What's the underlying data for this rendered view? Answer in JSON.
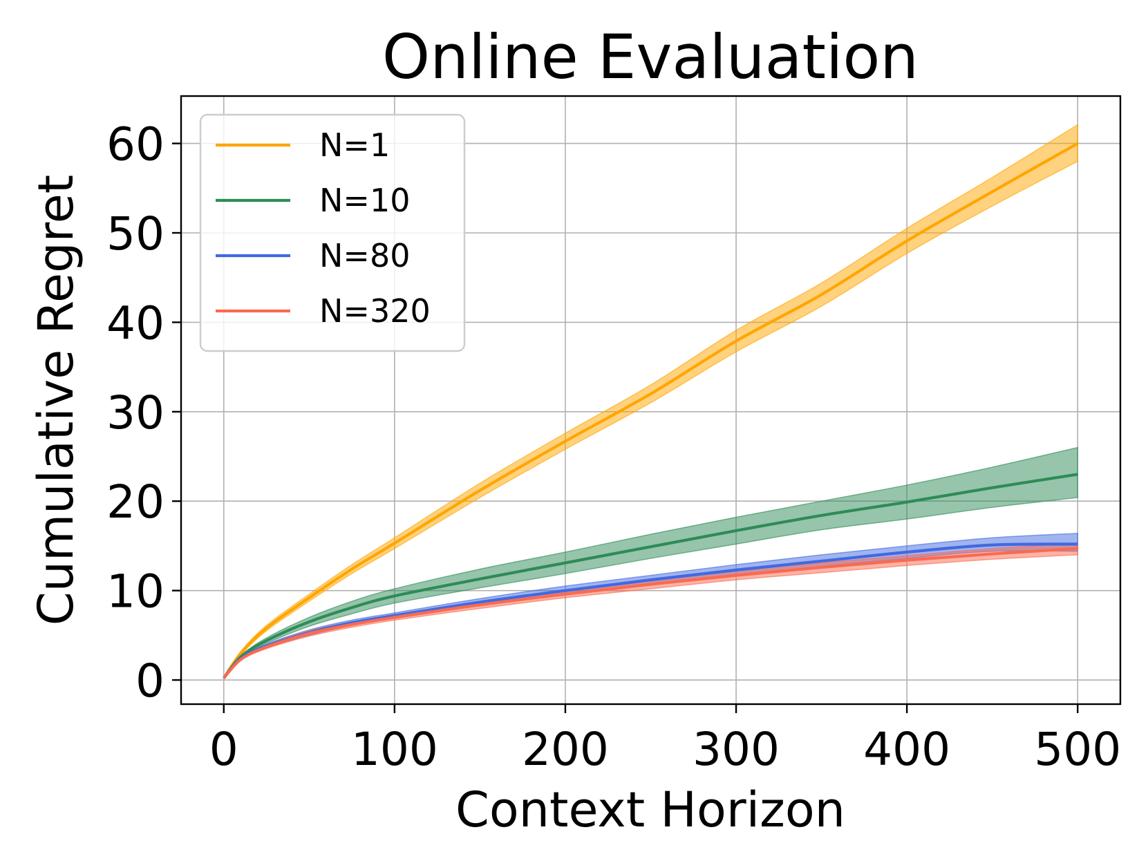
{
  "chart_data": {
    "type": "line",
    "title": "Online Evaluation",
    "xlabel": "Context Horizon",
    "ylabel": "Cumulative Regret",
    "xlim": [
      -25,
      525
    ],
    "ylim": [
      -2.7,
      65.3
    ],
    "xticks": [
      0,
      100,
      200,
      300,
      400,
      500
    ],
    "yticks": [
      0,
      10,
      20,
      30,
      40,
      50,
      60
    ],
    "grid": true,
    "legend_position": "upper-left",
    "series": [
      {
        "name": "N=1",
        "color": "#FFA500",
        "x": [
          0,
          10,
          25,
          50,
          75,
          100,
          150,
          200,
          250,
          300,
          350,
          400,
          450,
          500
        ],
        "y": [
          0.2,
          3.0,
          5.8,
          9.2,
          12.4,
          15.3,
          21.2,
          26.7,
          32.0,
          37.9,
          43.1,
          49.1,
          54.6,
          60.0
        ],
        "lower": [
          0.2,
          2.8,
          5.5,
          8.8,
          11.9,
          14.7,
          20.4,
          25.8,
          31.0,
          36.7,
          41.8,
          47.7,
          53.0,
          58.0
        ],
        "upper": [
          0.2,
          3.2,
          6.1,
          9.6,
          12.9,
          15.9,
          22.0,
          27.6,
          33.0,
          39.1,
          44.4,
          50.5,
          56.2,
          62.1
        ]
      },
      {
        "name": "N=10",
        "color": "#2E8B57",
        "x": [
          0,
          10,
          25,
          50,
          75,
          100,
          150,
          200,
          250,
          300,
          350,
          400,
          450,
          500
        ],
        "y": [
          0.2,
          2.6,
          4.4,
          6.5,
          8.1,
          9.4,
          11.3,
          13.1,
          14.9,
          16.7,
          18.4,
          19.9,
          21.5,
          23.0
        ],
        "lower": [
          0.2,
          2.5,
          4.1,
          6.0,
          7.4,
          8.6,
          10.3,
          11.9,
          13.6,
          15.2,
          16.8,
          18.0,
          19.3,
          20.4
        ],
        "upper": [
          0.2,
          2.7,
          4.7,
          7.0,
          8.8,
          10.2,
          12.4,
          14.3,
          16.3,
          18.2,
          20.0,
          21.8,
          23.8,
          26.0
        ]
      },
      {
        "name": "N=80",
        "color": "#4169E1",
        "x": [
          0,
          10,
          25,
          50,
          75,
          100,
          150,
          200,
          250,
          300,
          350,
          400,
          450,
          500
        ],
        "y": [
          0.2,
          2.4,
          3.8,
          5.3,
          6.4,
          7.2,
          8.7,
          10.0,
          11.2,
          12.3,
          13.3,
          14.3,
          15.1,
          15.2
        ],
        "lower": [
          0.2,
          2.3,
          3.6,
          5.0,
          6.1,
          6.9,
          8.3,
          9.6,
          10.7,
          11.7,
          12.7,
          13.6,
          14.4,
          14.4
        ],
        "upper": [
          0.2,
          2.5,
          4.0,
          5.6,
          6.7,
          7.5,
          9.1,
          10.5,
          11.7,
          12.9,
          14.0,
          15.0,
          15.9,
          16.4
        ]
      },
      {
        "name": "N=320",
        "color": "#FA6A50",
        "x": [
          0,
          10,
          25,
          50,
          75,
          100,
          150,
          200,
          250,
          300,
          350,
          400,
          450,
          500
        ],
        "y": [
          0.2,
          2.3,
          3.7,
          5.2,
          6.2,
          7.0,
          8.4,
          9.6,
          10.7,
          11.7,
          12.6,
          13.4,
          14.1,
          14.7
        ],
        "lower": [
          0.2,
          2.2,
          3.5,
          4.9,
          5.9,
          6.7,
          8.0,
          9.2,
          10.2,
          11.2,
          12.0,
          12.8,
          13.5,
          14.0
        ],
        "upper": [
          0.2,
          2.4,
          3.9,
          5.5,
          6.5,
          7.3,
          8.8,
          10.0,
          11.1,
          12.2,
          13.1,
          13.9,
          14.7,
          15.3
        ]
      }
    ]
  }
}
